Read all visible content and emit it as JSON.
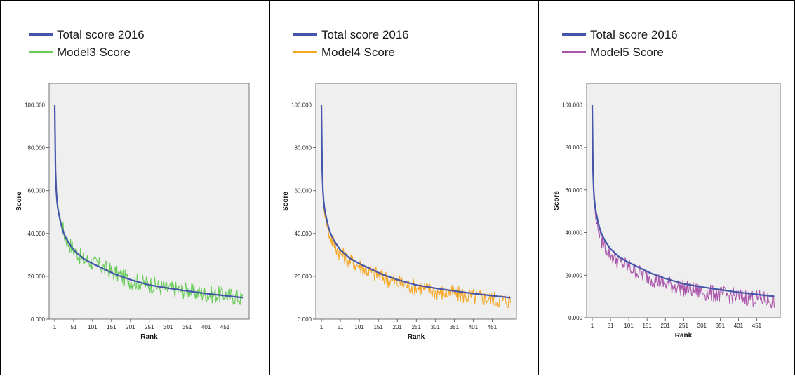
{
  "chart_data": [
    {
      "type": "line",
      "xlabel": "Rank",
      "ylabel": "Score",
      "x_ticks": [
        "1",
        "51",
        "101",
        "151",
        "201",
        "251",
        "301",
        "351",
        "401",
        "451"
      ],
      "y_ticks": [
        "0.000",
        "20.000",
        "40.000",
        "60.000",
        "80.000",
        "100.000"
      ],
      "xlim": [
        1,
        500
      ],
      "ylim": [
        0,
        110
      ],
      "grid": false,
      "legend_position": "top-left",
      "series": [
        {
          "name": "Total score 2016",
          "color": "#4455aa",
          "x": [
            1,
            3,
            5,
            8,
            12,
            18,
            25,
            35,
            50,
            75,
            100,
            130,
            160,
            200,
            250,
            300,
            350,
            400,
            450,
            500
          ],
          "y": [
            100.0,
            70.0,
            60.0,
            53.0,
            49.0,
            44.0,
            40.0,
            36.5,
            32.5,
            28.5,
            26.0,
            23.5,
            21.0,
            18.5,
            16.0,
            14.5,
            13.2,
            12.0,
            11.0,
            10.0
          ]
        },
        {
          "name": "Model3 Score",
          "color": "#66cc55",
          "x": [
            1,
            3,
            5,
            8,
            12,
            18,
            25,
            35,
            50,
            75,
            100,
            130,
            160,
            200,
            250,
            300,
            350,
            400,
            450,
            500
          ],
          "y": [
            99.0,
            71.0,
            61.0,
            54.0,
            50.0,
            45.0,
            40.5,
            36.0,
            33.0,
            28.0,
            26.5,
            24.0,
            21.5,
            18.0,
            16.5,
            14.0,
            13.5,
            11.5,
            11.5,
            9.5
          ]
        }
      ]
    },
    {
      "type": "line",
      "xlabel": "Rank",
      "ylabel": "Score",
      "x_ticks": [
        "1",
        "51",
        "101",
        "151",
        "201",
        "251",
        "301",
        "351",
        "401",
        "451"
      ],
      "y_ticks": [
        "0.000",
        "20.000",
        "40.000",
        "60.000",
        "80.000",
        "100.000"
      ],
      "xlim": [
        1,
        500
      ],
      "ylim": [
        0,
        110
      ],
      "grid": false,
      "legend_position": "top-left",
      "series": [
        {
          "name": "Total score 2016",
          "color": "#4455aa",
          "x": [
            1,
            3,
            5,
            8,
            12,
            18,
            25,
            35,
            50,
            75,
            100,
            130,
            160,
            200,
            250,
            300,
            350,
            400,
            450,
            500
          ],
          "y": [
            100.0,
            70.0,
            60.0,
            53.0,
            49.0,
            44.0,
            40.0,
            36.5,
            32.5,
            28.5,
            26.0,
            23.5,
            21.0,
            18.5,
            16.0,
            14.5,
            13.2,
            12.0,
            11.0,
            10.0
          ]
        },
        {
          "name": "Model4 Score",
          "color": "#f5a623",
          "x": [
            1,
            3,
            5,
            8,
            12,
            18,
            25,
            35,
            50,
            75,
            100,
            130,
            160,
            200,
            250,
            300,
            350,
            400,
            450,
            500
          ],
          "y": [
            99.0,
            69.0,
            58.0,
            52.0,
            47.0,
            42.0,
            38.0,
            35.0,
            31.0,
            27.0,
            25.0,
            22.0,
            20.0,
            17.0,
            15.0,
            13.0,
            12.0,
            10.5,
            9.5,
            8.5
          ]
        }
      ]
    },
    {
      "type": "line",
      "xlabel": "Rank",
      "ylabel": "Score",
      "x_ticks": [
        "1",
        "51",
        "101",
        "151",
        "201",
        "251",
        "301",
        "351",
        "401",
        "451"
      ],
      "y_ticks": [
        "0.000",
        "20.000",
        "40.000",
        "60.000",
        "80.000",
        "100.000"
      ],
      "xlim": [
        1,
        500
      ],
      "ylim": [
        0,
        110
      ],
      "grid": false,
      "legend_position": "top-left",
      "series": [
        {
          "name": "Total score 2016",
          "color": "#4455aa",
          "x": [
            1,
            3,
            5,
            8,
            12,
            18,
            25,
            35,
            50,
            75,
            100,
            130,
            160,
            200,
            250,
            300,
            350,
            400,
            450,
            500
          ],
          "y": [
            100.0,
            70.0,
            60.0,
            53.0,
            49.0,
            44.0,
            40.0,
            36.5,
            32.5,
            28.5,
            26.0,
            23.5,
            21.0,
            18.5,
            16.0,
            14.5,
            13.2,
            12.0,
            11.0,
            10.0
          ]
        },
        {
          "name": "Model5 Score",
          "color": "#aa55aa",
          "x": [
            1,
            3,
            5,
            8,
            12,
            18,
            25,
            35,
            50,
            75,
            100,
            130,
            160,
            200,
            250,
            300,
            350,
            400,
            450,
            500
          ],
          "y": [
            99.0,
            68.0,
            56.0,
            51.0,
            46.0,
            41.0,
            37.0,
            34.0,
            30.0,
            26.0,
            24.0,
            21.0,
            19.0,
            16.0,
            14.0,
            12.0,
            11.0,
            10.0,
            9.0,
            8.0
          ]
        }
      ]
    }
  ]
}
